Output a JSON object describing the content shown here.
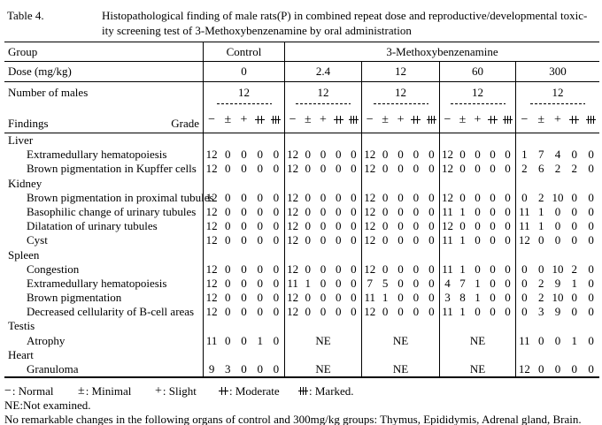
{
  "caption": {
    "label": "Table 4.",
    "line1": "Histopathological finding of male rats(P) in combined repeat dose and reproductive/developmental toxic-",
    "line2": "ity screening test of 3-Methoxybenzenamine by oral administration"
  },
  "header": {
    "group_label": "Group",
    "control_label": "Control",
    "substance_label": "3-Methoxybenzenamine",
    "dose_label": "Dose (mg/kg)",
    "doses": [
      "0",
      "2.4",
      "12",
      "60",
      "300"
    ],
    "males_label": "Number of males",
    "males": [
      "12",
      "12",
      "12",
      "12",
      "12"
    ],
    "findings_label": "Findings",
    "grade_label": "Grade"
  },
  "grades": {
    "legend_sep": ": ",
    "items": [
      {
        "name": "normal",
        "glyph": "−",
        "label": "Normal"
      },
      {
        "name": "minimal",
        "glyph": "±",
        "label": "Minimal"
      },
      {
        "name": "slight",
        "glyph": "+",
        "label": "Slight"
      },
      {
        "name": "moderate",
        "glyph": "",
        "label": "Moderate"
      },
      {
        "name": "marked",
        "glyph": "",
        "label": "Marked."
      }
    ]
  },
  "not_examined": "NE",
  "rows": [
    {
      "type": "section",
      "label": "Liver"
    },
    {
      "type": "finding",
      "label": "Extramedullary hematopoiesis",
      "values": [
        [
          12,
          0,
          0,
          0,
          0
        ],
        [
          12,
          0,
          0,
          0,
          0
        ],
        [
          12,
          0,
          0,
          0,
          0
        ],
        [
          12,
          0,
          0,
          0,
          0
        ],
        [
          1,
          7,
          4,
          0,
          0
        ]
      ]
    },
    {
      "type": "finding",
      "label": "Brown pigmentation in Kupffer cells",
      "values": [
        [
          12,
          0,
          0,
          0,
          0
        ],
        [
          12,
          0,
          0,
          0,
          0
        ],
        [
          12,
          0,
          0,
          0,
          0
        ],
        [
          12,
          0,
          0,
          0,
          0
        ],
        [
          2,
          6,
          2,
          2,
          0
        ]
      ]
    },
    {
      "type": "section",
      "label": "Kidney"
    },
    {
      "type": "finding",
      "label": "Brown pigmentation in proximal tubules",
      "values": [
        [
          12,
          0,
          0,
          0,
          0
        ],
        [
          12,
          0,
          0,
          0,
          0
        ],
        [
          12,
          0,
          0,
          0,
          0
        ],
        [
          12,
          0,
          0,
          0,
          0
        ],
        [
          0,
          2,
          10,
          0,
          0
        ]
      ]
    },
    {
      "type": "finding",
      "label": "Basophilic change of urinary tubules",
      "values": [
        [
          12,
          0,
          0,
          0,
          0
        ],
        [
          12,
          0,
          0,
          0,
          0
        ],
        [
          12,
          0,
          0,
          0,
          0
        ],
        [
          11,
          1,
          0,
          0,
          0
        ],
        [
          11,
          1,
          0,
          0,
          0
        ]
      ]
    },
    {
      "type": "finding",
      "label": "Dilatation of urinary tubules",
      "values": [
        [
          12,
          0,
          0,
          0,
          0
        ],
        [
          12,
          0,
          0,
          0,
          0
        ],
        [
          12,
          0,
          0,
          0,
          0
        ],
        [
          12,
          0,
          0,
          0,
          0
        ],
        [
          11,
          1,
          0,
          0,
          0
        ]
      ]
    },
    {
      "type": "finding",
      "label": "Cyst",
      "values": [
        [
          12,
          0,
          0,
          0,
          0
        ],
        [
          12,
          0,
          0,
          0,
          0
        ],
        [
          12,
          0,
          0,
          0,
          0
        ],
        [
          11,
          1,
          0,
          0,
          0
        ],
        [
          12,
          0,
          0,
          0,
          0
        ]
      ]
    },
    {
      "type": "section",
      "label": "Spleen"
    },
    {
      "type": "finding",
      "label": "Congestion",
      "values": [
        [
          12,
          0,
          0,
          0,
          0
        ],
        [
          12,
          0,
          0,
          0,
          0
        ],
        [
          12,
          0,
          0,
          0,
          0
        ],
        [
          11,
          1,
          0,
          0,
          0
        ],
        [
          0,
          0,
          10,
          2,
          0
        ]
      ]
    },
    {
      "type": "finding",
      "label": "Extramedullary hematopoiesis",
      "values": [
        [
          12,
          0,
          0,
          0,
          0
        ],
        [
          11,
          1,
          0,
          0,
          0
        ],
        [
          7,
          5,
          0,
          0,
          0
        ],
        [
          4,
          7,
          1,
          0,
          0
        ],
        [
          0,
          2,
          9,
          1,
          0
        ]
      ]
    },
    {
      "type": "finding",
      "label": "Brown pigmentation",
      "values": [
        [
          12,
          0,
          0,
          0,
          0
        ],
        [
          12,
          0,
          0,
          0,
          0
        ],
        [
          11,
          1,
          0,
          0,
          0
        ],
        [
          3,
          8,
          1,
          0,
          0
        ],
        [
          0,
          2,
          10,
          0,
          0
        ]
      ]
    },
    {
      "type": "finding",
      "label": "Decreased cellularity of B-cell areas",
      "values": [
        [
          12,
          0,
          0,
          0,
          0
        ],
        [
          12,
          0,
          0,
          0,
          0
        ],
        [
          12,
          0,
          0,
          0,
          0
        ],
        [
          11,
          1,
          0,
          0,
          0
        ],
        [
          0,
          3,
          9,
          0,
          0
        ]
      ]
    },
    {
      "type": "section",
      "label": "Testis"
    },
    {
      "type": "finding",
      "label": "Atrophy",
      "values": [
        [
          11,
          0,
          0,
          1,
          0
        ],
        "NE",
        "NE",
        "NE",
        [
          11,
          0,
          0,
          1,
          0
        ]
      ]
    },
    {
      "type": "section",
      "label": "Heart"
    },
    {
      "type": "finding",
      "label": "Granuloma",
      "values": [
        [
          9,
          3,
          0,
          0,
          0
        ],
        "NE",
        "NE",
        "NE",
        [
          12,
          0,
          0,
          0,
          0
        ]
      ]
    }
  ],
  "footnotes": {
    "ne_note": "NE:Not examined.",
    "no_change_note": "No remarkable changes in the following organs of control and 300mg/kg groups: Thymus, Epididymis, Adrenal gland, Brain."
  }
}
